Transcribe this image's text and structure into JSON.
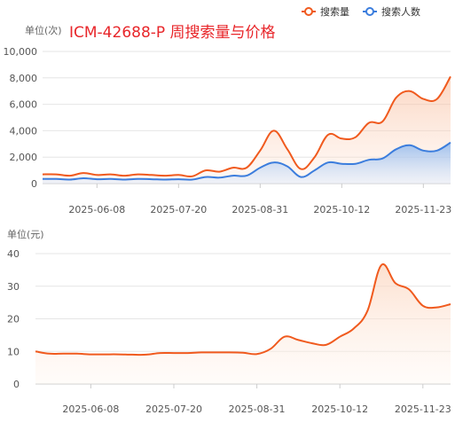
{
  "header": {
    "title": "ICM-42688-P 周搜索量与价格",
    "title_color": "#e8262a"
  },
  "legend": {
    "items": [
      {
        "label": "搜索量",
        "color": "#f05a1e"
      },
      {
        "label": "搜索人数",
        "color": "#3b7ddd"
      }
    ]
  },
  "chart_data": [
    {
      "type": "area",
      "unit_label": "单位(次)",
      "title": "ICM-42688-P 周搜索量与价格",
      "y_ticks": [
        "0",
        "2,000",
        "4,000",
        "6,000",
        "8,000",
        "10,000"
      ],
      "ylim": [
        0,
        10000
      ],
      "x_tick_labels": [
        "2025-06-08",
        "2025-07-20",
        "2025-08-31",
        "2025-10-12",
        "2025-11-23"
      ],
      "legend_position": "top-right",
      "grid": true,
      "x": [
        "2025-05-11",
        "2025-05-18",
        "2025-05-25",
        "2025-06-01",
        "2025-06-08",
        "2025-06-15",
        "2025-06-22",
        "2025-06-29",
        "2025-07-06",
        "2025-07-13",
        "2025-07-20",
        "2025-07-27",
        "2025-08-03",
        "2025-08-10",
        "2025-08-17",
        "2025-08-24",
        "2025-08-31",
        "2025-09-07",
        "2025-09-14",
        "2025-09-21",
        "2025-09-28",
        "2025-10-05",
        "2025-10-12",
        "2025-10-19",
        "2025-10-26",
        "2025-11-02",
        "2025-11-09",
        "2025-11-16",
        "2025-11-23",
        "2025-11-30",
        "2025-12-07"
      ],
      "series": [
        {
          "name": "搜索量",
          "color": "#f05a1e",
          "values": [
            700,
            700,
            600,
            800,
            650,
            700,
            600,
            700,
            650,
            600,
            650,
            550,
            1000,
            900,
            1200,
            1200,
            2500,
            4000,
            2600,
            1100,
            2000,
            3700,
            3400,
            3500,
            4600,
            4700,
            6500,
            7000,
            6400,
            6400,
            8100
          ]
        },
        {
          "name": "搜索人数",
          "color": "#3b7ddd",
          "values": [
            350,
            350,
            300,
            400,
            330,
            350,
            300,
            350,
            330,
            300,
            330,
            300,
            500,
            450,
            600,
            600,
            1200,
            1600,
            1300,
            500,
            1000,
            1600,
            1500,
            1500,
            1800,
            1900,
            2600,
            2900,
            2500,
            2500,
            3100
          ]
        }
      ]
    },
    {
      "type": "area",
      "unit_label": "单位(元)",
      "y_ticks": [
        "0",
        "10",
        "20",
        "30",
        "40"
      ],
      "ylim": [
        0,
        40
      ],
      "x_tick_labels": [
        "2025-06-08",
        "2025-07-20",
        "2025-08-31",
        "2025-10-12",
        "2025-11-23"
      ],
      "grid": true,
      "x": [
        "2025-05-11",
        "2025-05-18",
        "2025-05-25",
        "2025-06-01",
        "2025-06-08",
        "2025-06-15",
        "2025-06-22",
        "2025-06-29",
        "2025-07-06",
        "2025-07-13",
        "2025-07-20",
        "2025-07-27",
        "2025-08-03",
        "2025-08-10",
        "2025-08-17",
        "2025-08-24",
        "2025-08-31",
        "2025-09-07",
        "2025-09-14",
        "2025-09-21",
        "2025-09-28",
        "2025-10-05",
        "2025-10-12",
        "2025-10-19",
        "2025-10-26",
        "2025-11-02",
        "2025-11-09",
        "2025-11-16",
        "2025-11-23",
        "2025-11-30",
        "2025-12-07"
      ],
      "series": [
        {
          "name": "价格",
          "color": "#f05a1e",
          "values": [
            10,
            9.3,
            9.3,
            9.3,
            9.1,
            9.1,
            9.1,
            9.0,
            9.0,
            9.5,
            9.5,
            9.5,
            9.7,
            9.7,
            9.7,
            9.6,
            9.2,
            10.8,
            14.5,
            13.5,
            12.5,
            12.0,
            14.5,
            17.0,
            22.5,
            36.5,
            31.0,
            29.0,
            24.0,
            23.5,
            24.5
          ]
        }
      ]
    }
  ]
}
